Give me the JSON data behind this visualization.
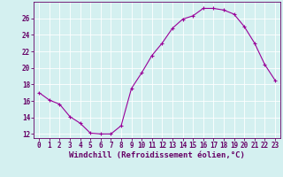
{
  "x": [
    0,
    1,
    2,
    3,
    4,
    5,
    6,
    7,
    8,
    9,
    10,
    11,
    12,
    13,
    14,
    15,
    16,
    17,
    18,
    19,
    20,
    21,
    22,
    23
  ],
  "y": [
    17.0,
    16.1,
    15.6,
    14.1,
    13.3,
    12.1,
    12.0,
    12.0,
    13.0,
    17.5,
    19.4,
    21.5,
    23.0,
    24.8,
    25.9,
    26.3,
    27.2,
    27.2,
    27.0,
    26.5,
    25.0,
    23.0,
    20.4,
    18.5
  ],
  "line_color": "#990099",
  "marker": "+",
  "marker_size": 3,
  "bg_color": "#d4f0f0",
  "grid_color": "#ffffff",
  "xlabel": "Windchill (Refroidissement éolien,°C)",
  "xlabel_fontsize": 6.5,
  "tick_fontsize": 5.5,
  "ylim": [
    11.5,
    28
  ],
  "yticks": [
    12,
    14,
    16,
    18,
    20,
    22,
    24,
    26
  ],
  "xlim": [
    -0.5,
    23.5
  ],
  "xticks": [
    0,
    1,
    2,
    3,
    4,
    5,
    6,
    7,
    8,
    9,
    10,
    11,
    12,
    13,
    14,
    15,
    16,
    17,
    18,
    19,
    20,
    21,
    22,
    23
  ]
}
